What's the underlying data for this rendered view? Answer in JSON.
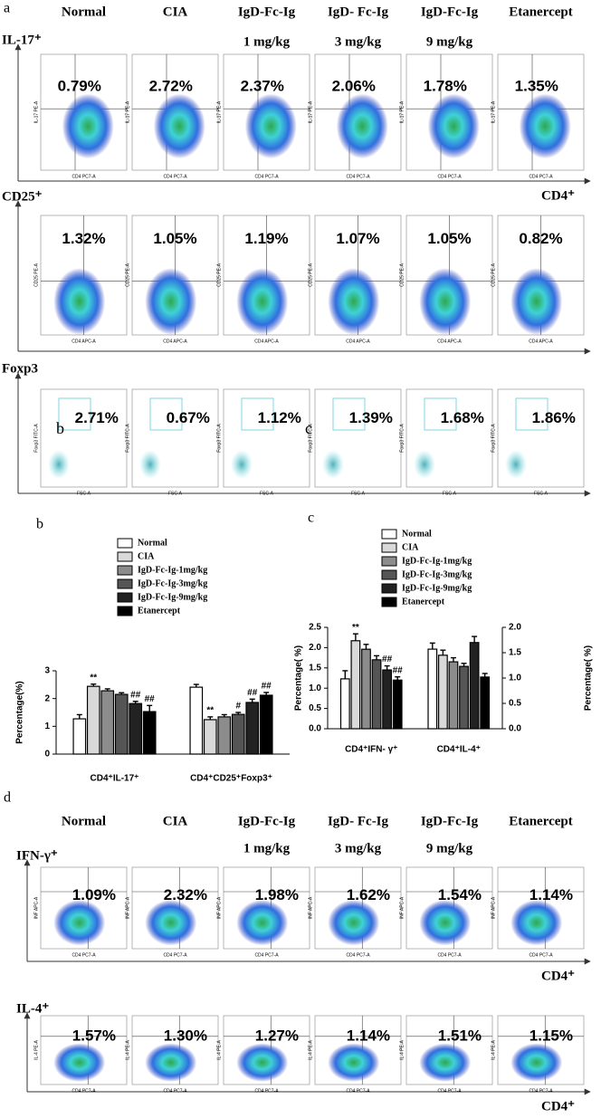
{
  "panel_a": {
    "label": "a",
    "headers": [
      "Normal",
      "CIA",
      "IgD-Fc-Ig",
      "IgD- Fc-Ig",
      "IgD-Fc-Ig",
      "Etanercept"
    ],
    "doses": [
      null,
      null,
      "1 mg/kg",
      "3 mg/kg",
      "9 mg/kg",
      null
    ],
    "rows": [
      {
        "label": "IL-17⁺",
        "x_label": "CD4 PC7-A",
        "y_label": "IL-17 PE-A",
        "percentages": [
          "0.79%",
          "2.72%",
          "2.37%",
          "2.06%",
          "1.78%",
          "1.35%"
        ],
        "axis_end": "CD4⁺"
      },
      {
        "label": "CD25⁺",
        "x_label": "CD4 APC-A",
        "y_label": "CD25 PE-A",
        "percentages": [
          "1.32%",
          "1.05%",
          "1.19%",
          "1.07%",
          "1.05%",
          "0.82%"
        ]
      },
      {
        "label": "Foxp3",
        "x_label": "FSC-A",
        "y_label": "Foxp3 FITC-A",
        "percentages": [
          "2.71%",
          "0.67%",
          "1.12%",
          "1.39%",
          "1.68%",
          "1.86%"
        ]
      }
    ],
    "overlay_letters": [
      "b",
      "c"
    ]
  },
  "chart_data": [
    {
      "type": "bar",
      "panel": "b",
      "categories": [
        "CD4⁺IL-17⁺",
        "CD4⁺CD25⁺Foxp3⁺"
      ],
      "y_label": "Percentage(%)",
      "ylim": [
        0,
        3
      ],
      "yticks": [
        0,
        1,
        2,
        3
      ],
      "series": [
        {
          "name": "Normal",
          "color": "#ffffff",
          "values": [
            1.27,
            2.41
          ],
          "errors": [
            0.15,
            0.1
          ],
          "significance": [
            null,
            null
          ]
        },
        {
          "name": "CIA",
          "color": "#d9d9d9",
          "values": [
            2.44,
            1.24
          ],
          "errors": [
            0.08,
            0.1
          ],
          "significance": [
            "**",
            "**"
          ]
        },
        {
          "name": "IgD-Fc-Ig-1mg/kg",
          "color": "#8c8c8c",
          "values": [
            2.28,
            1.34
          ],
          "errors": [
            0.07,
            0.08
          ],
          "significance": [
            null,
            null
          ]
        },
        {
          "name": "IgD-Fc-Ig-3mg/kg",
          "color": "#555555",
          "values": [
            2.15,
            1.43
          ],
          "errors": [
            0.06,
            0.07
          ],
          "significance": [
            null,
            "#"
          ]
        },
        {
          "name": "IgD-Fc-Ig-9mg/kg",
          "color": "#222222",
          "values": [
            1.82,
            1.86
          ],
          "errors": [
            0.08,
            0.12
          ],
          "significance": [
            "##",
            "##"
          ]
        },
        {
          "name": "Etanercept",
          "color": "#000000",
          "values": [
            1.53,
            2.12
          ],
          "errors": [
            0.22,
            0.1
          ],
          "significance": [
            "##",
            "##"
          ]
        }
      ]
    },
    {
      "type": "bar",
      "panel": "c",
      "categories": [
        "CD4⁺IFN- γ⁺",
        "CD4⁺IL-4⁺"
      ],
      "category_axes": [
        "y",
        "y2"
      ],
      "y_label": "Percentage( %)",
      "y2_label": "Percentage( %)",
      "ylim": [
        0,
        2.5
      ],
      "yticks": [
        {
          "value": 0,
          "label": "0.0"
        },
        0.5,
        {
          "value": 1,
          "label": "1.0"
        },
        1.5,
        {
          "value": 2,
          "label": "2.0"
        },
        2.5
      ],
      "y2lim": [
        0,
        2
      ],
      "y2ticks": [
        {
          "value": 0,
          "label": "0.0"
        },
        0.5,
        {
          "value": 1,
          "label": "1.0"
        },
        1.5,
        {
          "value": 2,
          "label": "2.0"
        }
      ],
      "series": [
        {
          "name": "Normal",
          "color": "#ffffff",
          "values": [
            1.23,
            1.57
          ],
          "errors": [
            0.2,
            0.12
          ],
          "significance": [
            null,
            null
          ]
        },
        {
          "name": "CIA",
          "color": "#d9d9d9",
          "values": [
            2.17,
            1.45
          ],
          "errors": [
            0.17,
            0.1
          ],
          "significance": [
            "**",
            null
          ]
        },
        {
          "name": "IgD-Fc-Ig-1mg/kg",
          "color": "#8c8c8c",
          "values": [
            1.96,
            1.32
          ],
          "errors": [
            0.12,
            0.08
          ],
          "significance": [
            null,
            null
          ]
        },
        {
          "name": "IgD-Fc-Ig-3mg/kg",
          "color": "#555555",
          "values": [
            1.7,
            1.23
          ],
          "errors": [
            0.1,
            0.06
          ],
          "significance": [
            null,
            null
          ]
        },
        {
          "name": "IgD-Fc-Ig-9mg/kg",
          "color": "#222222",
          "values": [
            1.45,
            1.7
          ],
          "errors": [
            0.1,
            0.12
          ],
          "significance": [
            "##",
            null
          ]
        },
        {
          "name": "Etanercept",
          "color": "#000000",
          "values": [
            1.2,
            1.02
          ],
          "errors": [
            0.08,
            0.07
          ],
          "significance": [
            "##",
            null
          ]
        }
      ]
    }
  ],
  "panel_d": {
    "label": "d",
    "headers": [
      "Normal",
      "CIA",
      "IgD-Fc-Ig",
      "IgD- Fc-Ig",
      "IgD-Fc-Ig",
      "Etanercept"
    ],
    "doses": [
      null,
      null,
      "1 mg/kg",
      "3 mg/kg",
      "9 mg/kg",
      null
    ],
    "rows": [
      {
        "label": "IFN-γ⁺",
        "x_label": "CD4 PC7-A",
        "y_label": "INF APC-A",
        "percentages": [
          "1.09%",
          "2.32%",
          "1.98%",
          "1.62%",
          "1.54%",
          "1.14%"
        ],
        "axis_end": "CD4⁺"
      },
      {
        "label": "IL-4⁺",
        "x_label": "CD4 PC7-A",
        "y_label": "IL-4 PE-A",
        "percentages": [
          "1.57%",
          "1.30%",
          "1.27%",
          "1.14%",
          "1.51%",
          "1.15%"
        ],
        "axis_end": "CD4⁺"
      }
    ]
  }
}
